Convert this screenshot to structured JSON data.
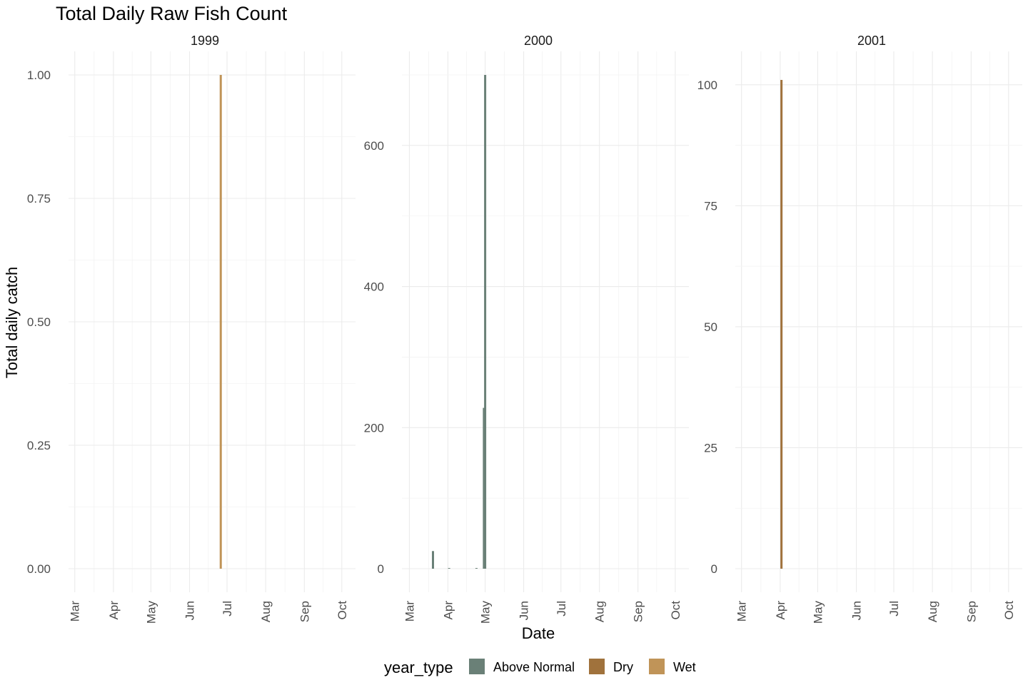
{
  "chart_data": {
    "type": "bar",
    "title": "Total Daily Raw Fish Count",
    "xlabel": "Date",
    "ylabel": "Total daily catch",
    "legend": {
      "title": "year_type",
      "position": "bottom",
      "entries": [
        {
          "label": "Above Normal",
          "color": "#6a8077"
        },
        {
          "label": "Dry",
          "color": "#a0723c"
        },
        {
          "label": "Wet",
          "color": "#c09458"
        }
      ]
    },
    "grid": true,
    "x_tick_labels": [
      "Mar",
      "Apr",
      "May",
      "Jun",
      "Jul",
      "Aug",
      "Sep",
      "Oct"
    ],
    "panels": [
      {
        "label": "1999",
        "ylim": [
          0,
          1
        ],
        "y_ticks": [
          0,
          0.25,
          0.5,
          0.75,
          1
        ],
        "y_tick_labels": [
          "0.00",
          "0.25",
          "0.50",
          "0.75",
          "1.00"
        ],
        "bars": [
          {
            "date": "1999-06-26",
            "value": 1,
            "year_type": "Wet"
          }
        ]
      },
      {
        "label": "2000",
        "ylim": [
          0,
          700
        ],
        "y_ticks": [
          0,
          200,
          400,
          600
        ],
        "y_tick_labels": [
          "0",
          "200",
          "400",
          "600"
        ],
        "bars": [
          {
            "date": "2000-03-20",
            "value": 25,
            "year_type": "Above Normal"
          },
          {
            "date": "2000-04-02",
            "value": 1,
            "year_type": "Above Normal"
          },
          {
            "date": "2000-04-24",
            "value": 1,
            "year_type": "Above Normal"
          },
          {
            "date": "2000-04-30",
            "value": 228,
            "year_type": "Above Normal"
          },
          {
            "date": "2000-05-01",
            "value": 700,
            "year_type": "Above Normal"
          }
        ]
      },
      {
        "label": "2001",
        "ylim": [
          0,
          101
        ],
        "y_ticks": [
          0,
          25,
          50,
          75,
          100
        ],
        "y_tick_labels": [
          "0",
          "25",
          "50",
          "75",
          "100"
        ],
        "bars": [
          {
            "date": "2001-04-02",
            "value": 101,
            "year_type": "Dry"
          }
        ]
      }
    ]
  }
}
